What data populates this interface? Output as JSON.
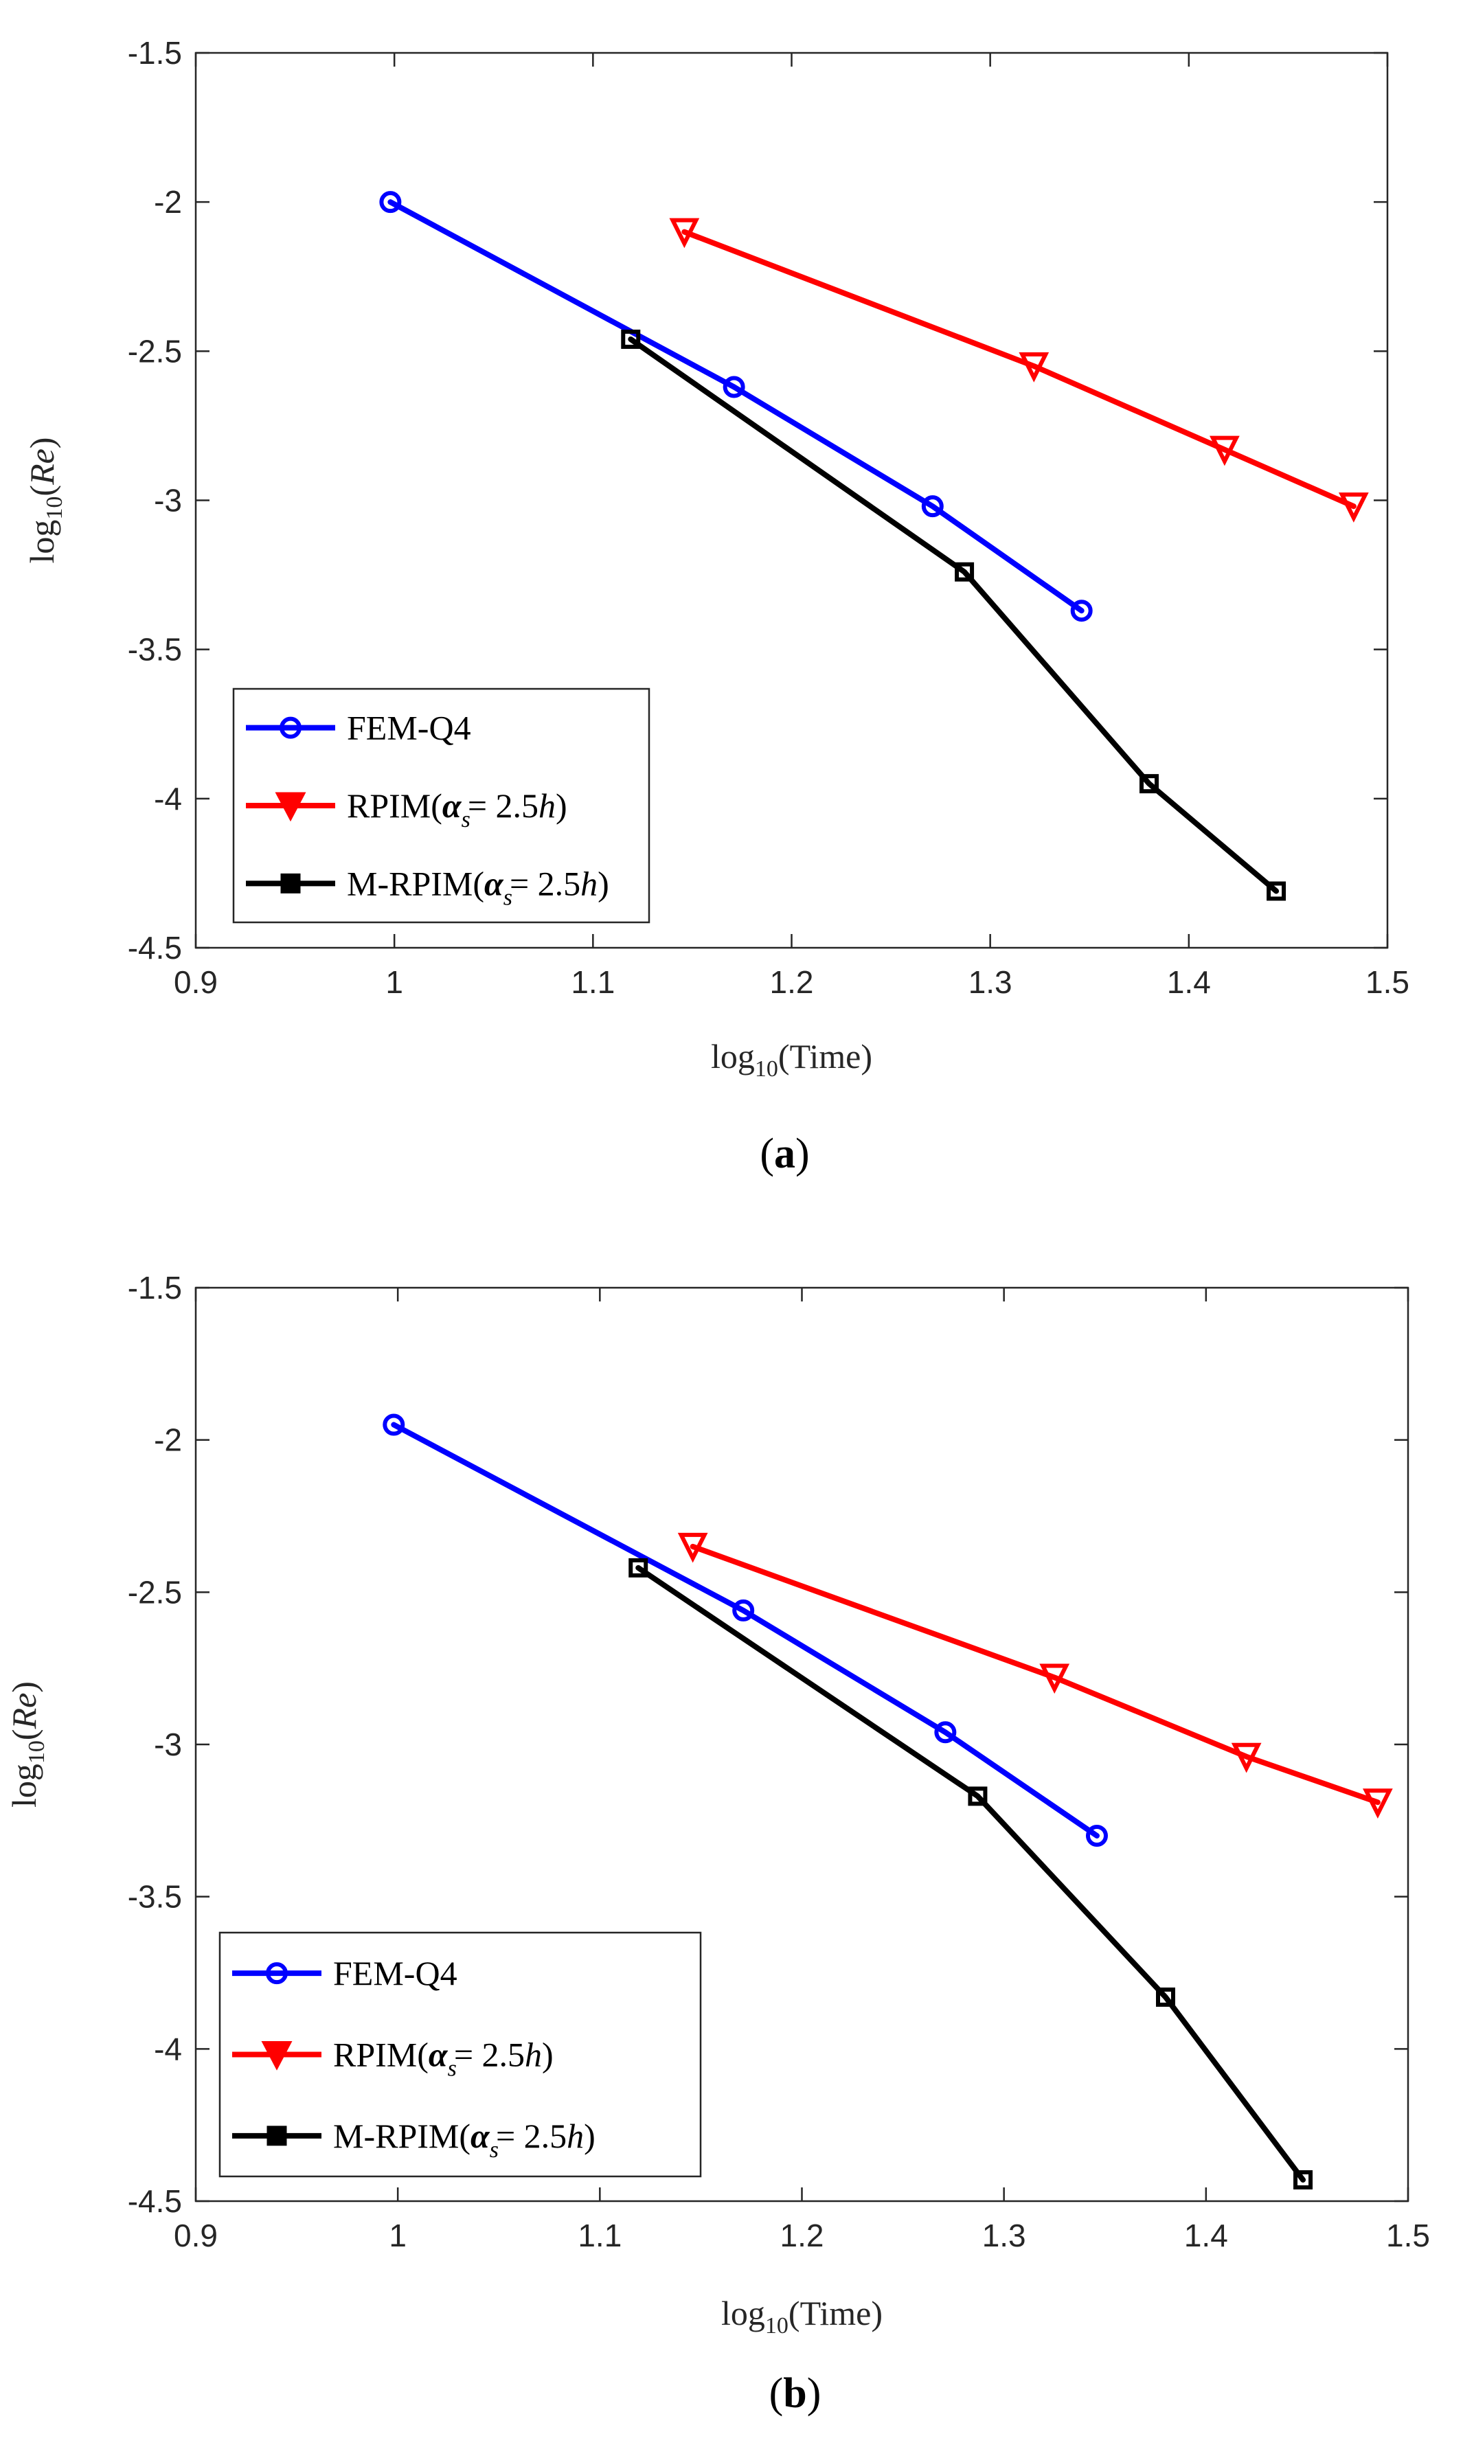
{
  "colors": {
    "FEM-Q4": "#0000ff",
    "RPIM": "#ff0000",
    "M-RPIM": "#000000",
    "axis": "#262626"
  },
  "chart_data": [
    {
      "type": "line",
      "panel_label": "a",
      "xlabel": "log10(Time)",
      "ylabel": "log10(Re)",
      "xlim": [
        0.9,
        1.5
      ],
      "ylim": [
        -4.5,
        -1.5
      ],
      "xticks": [
        "0.9",
        "1",
        "1.1",
        "1.2",
        "1.3",
        "1.4",
        "1.5"
      ],
      "yticks": [
        "-1.5",
        "-2",
        "-2.5",
        "-3",
        "-3.5",
        "-4",
        "-4.5"
      ],
      "grid": false,
      "legend_position": "bottom-left",
      "series": [
        {
          "name": "FEM-Q4",
          "legend_main": "FEM-Q4",
          "legend_sub": "",
          "legend_tail": "",
          "marker": "circle",
          "color": "#0000ff",
          "x": [
            0.998,
            1.171,
            1.271,
            1.346
          ],
          "y": [
            -2.0,
            -2.62,
            -3.02,
            -3.37
          ]
        },
        {
          "name": "RPIM(αs= 2.5h)",
          "legend_main": "RPIM(α",
          "legend_sub": "s",
          "legend_tail": "= 2.5h)",
          "marker": "triangle-down",
          "color": "#ff0000",
          "x": [
            1.146,
            1.322,
            1.418,
            1.483
          ],
          "y": [
            -2.1,
            -2.55,
            -2.83,
            -3.02
          ]
        },
        {
          "name": "M-RPIM(αs= 2.5h)",
          "legend_main": "M-RPIM(α",
          "legend_sub": "s",
          "legend_tail": "= 2.5h)",
          "marker": "square",
          "color": "#000000",
          "x": [
            1.119,
            1.287,
            1.38,
            1.444
          ],
          "y": [
            -2.46,
            -3.24,
            -3.95,
            -4.31
          ]
        }
      ]
    },
    {
      "type": "line",
      "panel_label": "b",
      "xlabel": "log10(Time)",
      "ylabel": "log10(Re)",
      "xlim": [
        0.9,
        1.5
      ],
      "ylim": [
        -4.5,
        -1.5
      ],
      "xticks": [
        "0.9",
        "1",
        "1.1",
        "1.2",
        "1.3",
        "1.4",
        "1.5"
      ],
      "yticks": [
        "-1.5",
        "-2",
        "-2.5",
        "-3",
        "-3.5",
        "-4",
        "-4.5"
      ],
      "grid": false,
      "legend_position": "bottom-left",
      "series": [
        {
          "name": "FEM-Q4",
          "legend_main": "FEM-Q4",
          "legend_sub": "",
          "legend_tail": "",
          "marker": "circle",
          "color": "#0000ff",
          "x": [
            0.998,
            1.171,
            1.271,
            1.346
          ],
          "y": [
            -1.95,
            -2.56,
            -2.96,
            -3.3
          ]
        },
        {
          "name": "RPIM(αs= 2.5h)",
          "legend_main": "RPIM(α",
          "legend_sub": "s",
          "legend_tail": "= 2.5h)",
          "marker": "triangle-down",
          "color": "#ff0000",
          "x": [
            1.146,
            1.325,
            1.42,
            1.485
          ],
          "y": [
            -2.35,
            -2.78,
            -3.04,
            -3.19
          ]
        },
        {
          "name": "M-RPIM(αs= 2.5h)",
          "legend_main": "M-RPIM(α",
          "legend_sub": "s",
          "legend_tail": "= 2.5h)",
          "marker": "square",
          "color": "#000000",
          "x": [
            1.119,
            1.287,
            1.38,
            1.448
          ],
          "y": [
            -2.42,
            -3.17,
            -3.83,
            -4.43
          ]
        }
      ]
    }
  ]
}
